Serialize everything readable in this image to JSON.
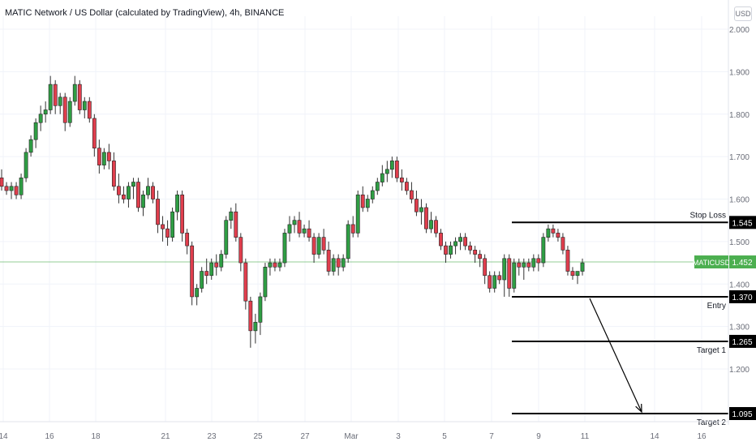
{
  "header": {
    "title": "MATIC Network / US Dollar (calculated by TradingView), 4h, BINANCE",
    "currency": "USD"
  },
  "colors": {
    "up": "#26a69a",
    "down": "#ef5350",
    "candle_up": "#2f9e44",
    "candle_down": "#e03e4d",
    "price_line": "#4caf50",
    "level": "#000000",
    "grid": "#f0f3fa",
    "axis_text": "#6a6d78"
  },
  "chart_data": {
    "type": "candlestick",
    "symbol": "MATICUSD",
    "timeframe": "4h",
    "exchange": "BINANCE",
    "y_axis": {
      "range": [
        1.08,
        2.04
      ],
      "ticks": [
        "2.000",
        "1.900",
        "1.800",
        "1.700",
        "1.600",
        "1.500",
        "1.400",
        "1.300",
        "1.200"
      ]
    },
    "x_axis": {
      "ticks": [
        "14",
        "16",
        "18",
        "21",
        "23",
        "25",
        "27",
        "Mar",
        "3",
        "5",
        "7",
        "9",
        "11",
        "14",
        "16"
      ]
    },
    "candles": [
      [
        1.65,
        1.67,
        1.62,
        1.63
      ],
      [
        1.63,
        1.64,
        1.61,
        1.62
      ],
      [
        1.62,
        1.64,
        1.6,
        1.63
      ],
      [
        1.63,
        1.64,
        1.6,
        1.61
      ],
      [
        1.61,
        1.66,
        1.6,
        1.65
      ],
      [
        1.65,
        1.72,
        1.64,
        1.71
      ],
      [
        1.71,
        1.75,
        1.7,
        1.74
      ],
      [
        1.74,
        1.79,
        1.72,
        1.78
      ],
      [
        1.78,
        1.82,
        1.76,
        1.8
      ],
      [
        1.8,
        1.83,
        1.78,
        1.81
      ],
      [
        1.81,
        1.89,
        1.8,
        1.87
      ],
      [
        1.87,
        1.88,
        1.8,
        1.82
      ],
      [
        1.82,
        1.85,
        1.8,
        1.84
      ],
      [
        1.84,
        1.85,
        1.76,
        1.78
      ],
      [
        1.78,
        1.84,
        1.77,
        1.83
      ],
      [
        1.83,
        1.89,
        1.82,
        1.87
      ],
      [
        1.87,
        1.88,
        1.8,
        1.81
      ],
      [
        1.81,
        1.84,
        1.79,
        1.83
      ],
      [
        1.83,
        1.84,
        1.78,
        1.79
      ],
      [
        1.79,
        1.8,
        1.7,
        1.72
      ],
      [
        1.72,
        1.74,
        1.66,
        1.68
      ],
      [
        1.68,
        1.72,
        1.67,
        1.71
      ],
      [
        1.71,
        1.73,
        1.67,
        1.69
      ],
      [
        1.69,
        1.71,
        1.62,
        1.63
      ],
      [
        1.63,
        1.66,
        1.59,
        1.61
      ],
      [
        1.61,
        1.63,
        1.59,
        1.6
      ],
      [
        1.6,
        1.64,
        1.58,
        1.63
      ],
      [
        1.63,
        1.65,
        1.6,
        1.64
      ],
      [
        1.64,
        1.65,
        1.57,
        1.58
      ],
      [
        1.58,
        1.62,
        1.56,
        1.61
      ],
      [
        1.61,
        1.65,
        1.6,
        1.63
      ],
      [
        1.63,
        1.64,
        1.59,
        1.6
      ],
      [
        1.6,
        1.62,
        1.52,
        1.54
      ],
      [
        1.54,
        1.56,
        1.5,
        1.53
      ],
      [
        1.53,
        1.55,
        1.49,
        1.51
      ],
      [
        1.51,
        1.58,
        1.5,
        1.57
      ],
      [
        1.57,
        1.62,
        1.55,
        1.61
      ],
      [
        1.61,
        1.62,
        1.5,
        1.52
      ],
      [
        1.52,
        1.53,
        1.47,
        1.49
      ],
      [
        1.49,
        1.5,
        1.35,
        1.37
      ],
      [
        1.37,
        1.4,
        1.35,
        1.39
      ],
      [
        1.39,
        1.44,
        1.38,
        1.43
      ],
      [
        1.43,
        1.46,
        1.4,
        1.42
      ],
      [
        1.42,
        1.46,
        1.41,
        1.45
      ],
      [
        1.45,
        1.47,
        1.42,
        1.44
      ],
      [
        1.44,
        1.48,
        1.43,
        1.47
      ],
      [
        1.47,
        1.56,
        1.46,
        1.55
      ],
      [
        1.55,
        1.58,
        1.53,
        1.57
      ],
      [
        1.57,
        1.59,
        1.5,
        1.51
      ],
      [
        1.51,
        1.52,
        1.43,
        1.45
      ],
      [
        1.45,
        1.46,
        1.34,
        1.36
      ],
      [
        1.36,
        1.37,
        1.25,
        1.29
      ],
      [
        1.29,
        1.33,
        1.26,
        1.31
      ],
      [
        1.31,
        1.38,
        1.28,
        1.37
      ],
      [
        1.37,
        1.45,
        1.36,
        1.44
      ],
      [
        1.44,
        1.46,
        1.42,
        1.45
      ],
      [
        1.45,
        1.46,
        1.43,
        1.44
      ],
      [
        1.44,
        1.46,
        1.43,
        1.45
      ],
      [
        1.45,
        1.53,
        1.44,
        1.52
      ],
      [
        1.52,
        1.56,
        1.5,
        1.54
      ],
      [
        1.54,
        1.56,
        1.52,
        1.55
      ],
      [
        1.55,
        1.57,
        1.51,
        1.52
      ],
      [
        1.52,
        1.54,
        1.51,
        1.53
      ],
      [
        1.53,
        1.55,
        1.5,
        1.51
      ],
      [
        1.51,
        1.52,
        1.45,
        1.47
      ],
      [
        1.47,
        1.52,
        1.46,
        1.51
      ],
      [
        1.51,
        1.53,
        1.47,
        1.48
      ],
      [
        1.48,
        1.5,
        1.42,
        1.43
      ],
      [
        1.43,
        1.47,
        1.42,
        1.46
      ],
      [
        1.46,
        1.47,
        1.42,
        1.44
      ],
      [
        1.44,
        1.47,
        1.43,
        1.46
      ],
      [
        1.46,
        1.55,
        1.45,
        1.54
      ],
      [
        1.54,
        1.56,
        1.51,
        1.52
      ],
      [
        1.52,
        1.62,
        1.51,
        1.61
      ],
      [
        1.61,
        1.63,
        1.57,
        1.58
      ],
      [
        1.58,
        1.61,
        1.57,
        1.6
      ],
      [
        1.6,
        1.63,
        1.59,
        1.62
      ],
      [
        1.62,
        1.65,
        1.61,
        1.64
      ],
      [
        1.64,
        1.68,
        1.63,
        1.66
      ],
      [
        1.66,
        1.69,
        1.64,
        1.67
      ],
      [
        1.67,
        1.7,
        1.65,
        1.69
      ],
      [
        1.69,
        1.7,
        1.64,
        1.65
      ],
      [
        1.65,
        1.67,
        1.62,
        1.64
      ],
      [
        1.64,
        1.65,
        1.61,
        1.62
      ],
      [
        1.62,
        1.64,
        1.59,
        1.6
      ],
      [
        1.6,
        1.62,
        1.56,
        1.57
      ],
      [
        1.57,
        1.6,
        1.54,
        1.58
      ],
      [
        1.58,
        1.59,
        1.52,
        1.53
      ],
      [
        1.53,
        1.57,
        1.52,
        1.55
      ],
      [
        1.55,
        1.56,
        1.51,
        1.52
      ],
      [
        1.52,
        1.53,
        1.48,
        1.49
      ],
      [
        1.49,
        1.5,
        1.45,
        1.47
      ],
      [
        1.47,
        1.5,
        1.46,
        1.49
      ],
      [
        1.49,
        1.51,
        1.47,
        1.5
      ],
      [
        1.5,
        1.52,
        1.48,
        1.51
      ],
      [
        1.51,
        1.52,
        1.48,
        1.49
      ],
      [
        1.49,
        1.5,
        1.47,
        1.48
      ],
      [
        1.48,
        1.49,
        1.45,
        1.47
      ],
      [
        1.47,
        1.48,
        1.44,
        1.46
      ],
      [
        1.46,
        1.47,
        1.4,
        1.42
      ],
      [
        1.42,
        1.43,
        1.38,
        1.39
      ],
      [
        1.39,
        1.43,
        1.38,
        1.42
      ],
      [
        1.42,
        1.43,
        1.4,
        1.41
      ],
      [
        1.41,
        1.47,
        1.37,
        1.46
      ],
      [
        1.46,
        1.47,
        1.37,
        1.39
      ],
      [
        1.39,
        1.46,
        1.38,
        1.45
      ],
      [
        1.45,
        1.46,
        1.42,
        1.44
      ],
      [
        1.44,
        1.46,
        1.41,
        1.45
      ],
      [
        1.45,
        1.46,
        1.43,
        1.44
      ],
      [
        1.44,
        1.47,
        1.43,
        1.46
      ],
      [
        1.46,
        1.47,
        1.43,
        1.45
      ],
      [
        1.45,
        1.52,
        1.44,
        1.51
      ],
      [
        1.51,
        1.54,
        1.5,
        1.53
      ],
      [
        1.53,
        1.54,
        1.51,
        1.52
      ],
      [
        1.52,
        1.53,
        1.5,
        1.51
      ],
      [
        1.51,
        1.52,
        1.47,
        1.48
      ],
      [
        1.48,
        1.49,
        1.42,
        1.43
      ],
      [
        1.43,
        1.44,
        1.41,
        1.42
      ],
      [
        1.42,
        1.43,
        1.4,
        1.43
      ],
      [
        1.43,
        1.46,
        1.42,
        1.45
      ]
    ],
    "current_price": {
      "value": 1.452,
      "label": "MATICUSD",
      "text": "1.452"
    },
    "levels": [
      {
        "name": "Stop Loss",
        "value": 1.545,
        "text": "1.545"
      },
      {
        "name": "Entry",
        "value": 1.37,
        "text": "1.370"
      },
      {
        "name": "Target 1",
        "value": 1.265,
        "text": "1.265"
      },
      {
        "name": "Target 2",
        "value": 1.095,
        "text": "1.095"
      }
    ]
  }
}
